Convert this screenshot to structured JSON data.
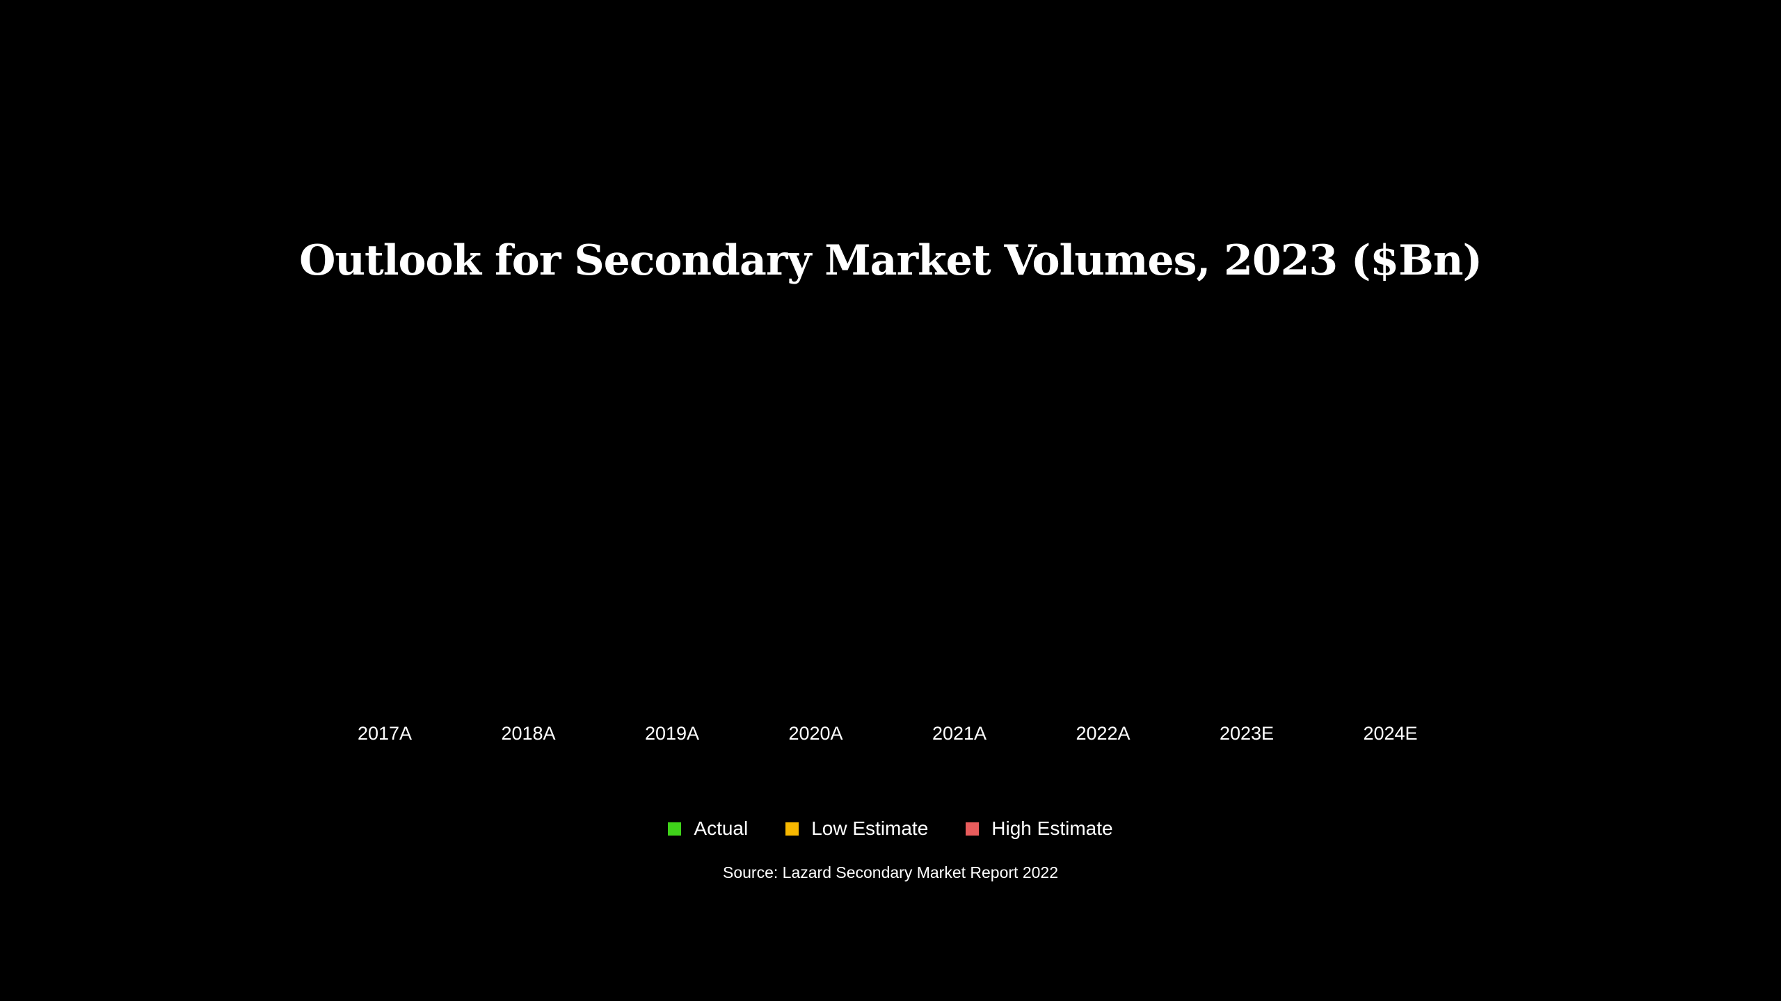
{
  "chart_data": {
    "type": "bar",
    "title": "Outlook for Secondary Market Volumes, 2023 ($Bn)",
    "categories": [
      "2017A",
      "2018A",
      "2019A",
      "2020A",
      "2021A",
      "2022A",
      "2023E",
      "2024E"
    ],
    "series": [
      {
        "name": "Actual",
        "color": "#3fd21a",
        "values": [
          null,
          null,
          null,
          null,
          null,
          null,
          null,
          null
        ]
      },
      {
        "name": "Low Estimate",
        "color": "#f7b800",
        "values": [
          null,
          null,
          null,
          null,
          null,
          null,
          null,
          null
        ]
      },
      {
        "name": "High Estimate",
        "color": "#e85c5c",
        "values": [
          null,
          null,
          null,
          null,
          null,
          null,
          null,
          null
        ]
      }
    ],
    "xlabel": "",
    "ylabel": "",
    "grid": false,
    "legend_position": "bottom-center",
    "source": "Source: Lazard Secondary Market Report 2022"
  },
  "colors": {
    "background": "#000000",
    "text": "#ffffff"
  }
}
